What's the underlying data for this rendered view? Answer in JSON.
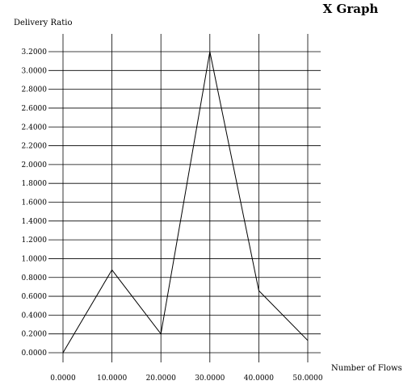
{
  "chart_data": {
    "type": "line",
    "title": "X Graph",
    "xlabel": "Number of Flows",
    "ylabel": "Delivery Ratio",
    "xlim": [
      0,
      50
    ],
    "ylim": [
      0,
      3.2
    ],
    "grid": true,
    "x_ticks": [
      "0.0000",
      "10.0000",
      "20.0000",
      "30.0000",
      "40.0000",
      "50.0000"
    ],
    "y_ticks": [
      "0.0000",
      "0.2000",
      "0.4000",
      "0.6000",
      "0.8000",
      "1.0000",
      "1.2000",
      "1.4000",
      "1.6000",
      "1.8000",
      "2.0000",
      "2.2000",
      "2.4000",
      "2.6000",
      "2.8000",
      "3.0000",
      "3.2000"
    ],
    "x_tick_values": [
      0,
      10,
      20,
      30,
      40,
      50
    ],
    "y_tick_values": [
      0,
      0.2,
      0.4,
      0.6,
      0.8,
      1.0,
      1.2,
      1.4,
      1.6,
      1.8,
      2.0,
      2.2,
      2.4,
      2.6,
      2.8,
      3.0,
      3.2
    ],
    "series": [
      {
        "x": [
          0,
          10,
          20,
          30,
          40,
          50
        ],
        "y": [
          0.0,
          0.88,
          0.2,
          3.2,
          0.66,
          0.13
        ],
        "color": "#000000"
      }
    ]
  }
}
